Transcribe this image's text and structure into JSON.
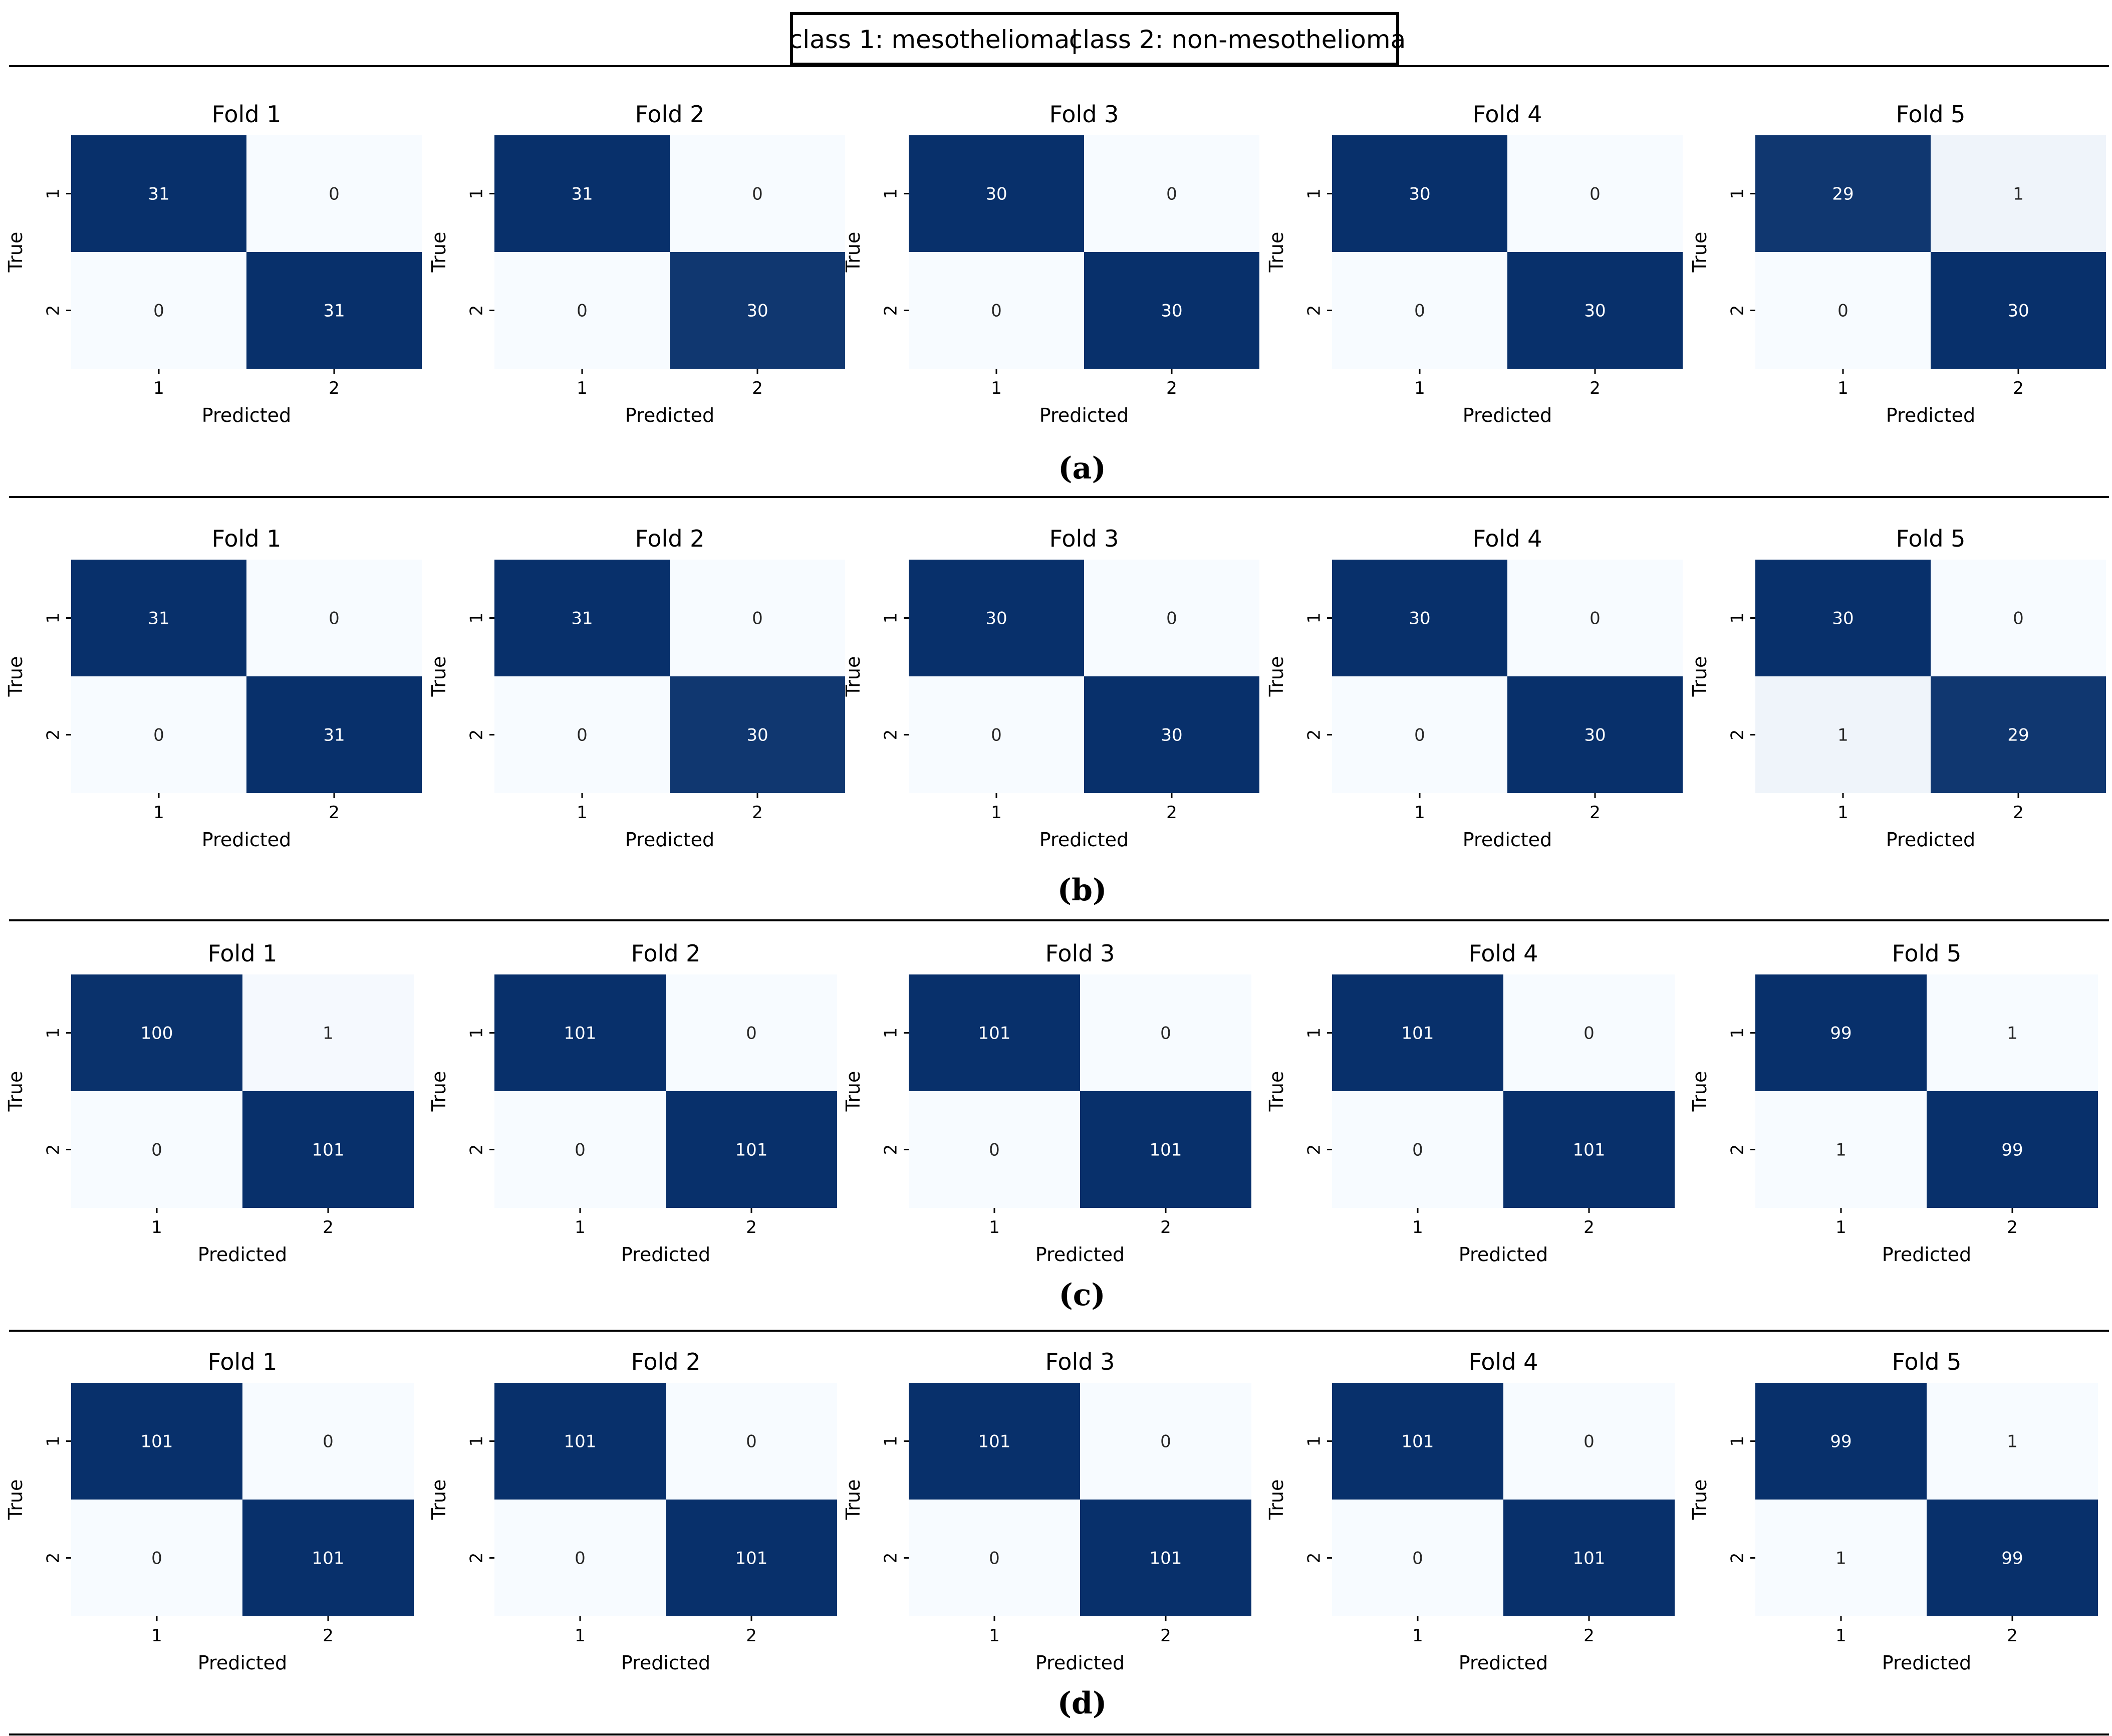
{
  "legend": {
    "class1": "class 1: mesothelioma",
    "separator": "|",
    "class2": "class 2: non-mesothelioma"
  },
  "colors": {
    "low": "#f7fbff",
    "high": "#08306b",
    "text_dark_bg": "#ffffff",
    "text_light_bg": "#262626"
  },
  "chart_data": [
    {
      "panel": "(a)",
      "type": "heatmap",
      "matrices": [
        {
          "title": "Fold 1",
          "xlabel": "Predicted",
          "ylabel": "True",
          "x_ticks": [
            "1",
            "2"
          ],
          "y_ticks": [
            "1",
            "2"
          ],
          "values": [
            [
              31,
              0
            ],
            [
              0,
              31
            ]
          ]
        },
        {
          "title": "Fold 2",
          "xlabel": "Predicted",
          "ylabel": "True",
          "x_ticks": [
            "1",
            "2"
          ],
          "y_ticks": [
            "1",
            "2"
          ],
          "values": [
            [
              31,
              0
            ],
            [
              0,
              30
            ]
          ]
        },
        {
          "title": "Fold 3",
          "xlabel": "Predicted",
          "ylabel": "True",
          "x_ticks": [
            "1",
            "2"
          ],
          "y_ticks": [
            "1",
            "2"
          ],
          "values": [
            [
              30,
              0
            ],
            [
              0,
              30
            ]
          ]
        },
        {
          "title": "Fold 4",
          "xlabel": "Predicted",
          "ylabel": "True",
          "x_ticks": [
            "1",
            "2"
          ],
          "y_ticks": [
            "1",
            "2"
          ],
          "values": [
            [
              30,
              0
            ],
            [
              0,
              30
            ]
          ]
        },
        {
          "title": "Fold 5",
          "xlabel": "Predicted",
          "ylabel": "True",
          "x_ticks": [
            "1",
            "2"
          ],
          "y_ticks": [
            "1",
            "2"
          ],
          "values": [
            [
              29,
              1
            ],
            [
              0,
              30
            ]
          ]
        }
      ]
    },
    {
      "panel": "(b)",
      "type": "heatmap",
      "matrices": [
        {
          "title": "Fold 1",
          "xlabel": "Predicted",
          "ylabel": "True",
          "x_ticks": [
            "1",
            "2"
          ],
          "y_ticks": [
            "1",
            "2"
          ],
          "values": [
            [
              31,
              0
            ],
            [
              0,
              31
            ]
          ]
        },
        {
          "title": "Fold 2",
          "xlabel": "Predicted",
          "ylabel": "True",
          "x_ticks": [
            "1",
            "2"
          ],
          "y_ticks": [
            "1",
            "2"
          ],
          "values": [
            [
              31,
              0
            ],
            [
              0,
              30
            ]
          ]
        },
        {
          "title": "Fold 3",
          "xlabel": "Predicted",
          "ylabel": "True",
          "x_ticks": [
            "1",
            "2"
          ],
          "y_ticks": [
            "1",
            "2"
          ],
          "values": [
            [
              30,
              0
            ],
            [
              0,
              30
            ]
          ]
        },
        {
          "title": "Fold 4",
          "xlabel": "Predicted",
          "ylabel": "True",
          "x_ticks": [
            "1",
            "2"
          ],
          "y_ticks": [
            "1",
            "2"
          ],
          "values": [
            [
              30,
              0
            ],
            [
              0,
              30
            ]
          ]
        },
        {
          "title": "Fold 5",
          "xlabel": "Predicted",
          "ylabel": "True",
          "x_ticks": [
            "1",
            "2"
          ],
          "y_ticks": [
            "1",
            "2"
          ],
          "values": [
            [
              30,
              0
            ],
            [
              1,
              29
            ]
          ]
        }
      ]
    },
    {
      "panel": "(c)",
      "type": "heatmap",
      "matrices": [
        {
          "title": "Fold 1",
          "xlabel": "Predicted",
          "ylabel": "True",
          "x_ticks": [
            "1",
            "2"
          ],
          "y_ticks": [
            "1",
            "2"
          ],
          "values": [
            [
              100,
              1
            ],
            [
              0,
              101
            ]
          ]
        },
        {
          "title": "Fold 2",
          "xlabel": "Predicted",
          "ylabel": "True",
          "x_ticks": [
            "1",
            "2"
          ],
          "y_ticks": [
            "1",
            "2"
          ],
          "values": [
            [
              101,
              0
            ],
            [
              0,
              101
            ]
          ]
        },
        {
          "title": "Fold 3",
          "xlabel": "Predicted",
          "ylabel": "True",
          "x_ticks": [
            "1",
            "2"
          ],
          "y_ticks": [
            "1",
            "2"
          ],
          "values": [
            [
              101,
              0
            ],
            [
              0,
              101
            ]
          ]
        },
        {
          "title": "Fold 4",
          "xlabel": "Predicted",
          "ylabel": "True",
          "x_ticks": [
            "1",
            "2"
          ],
          "y_ticks": [
            "1",
            "2"
          ],
          "values": [
            [
              101,
              0
            ],
            [
              0,
              101
            ]
          ]
        },
        {
          "title": "Fold 5",
          "xlabel": "Predicted",
          "ylabel": "True",
          "x_ticks": [
            "1",
            "2"
          ],
          "y_ticks": [
            "1",
            "2"
          ],
          "values": [
            [
              99,
              1
            ],
            [
              1,
              99
            ]
          ]
        }
      ]
    },
    {
      "panel": "(d)",
      "type": "heatmap",
      "matrices": [
        {
          "title": "Fold 1",
          "xlabel": "Predicted",
          "ylabel": "True",
          "x_ticks": [
            "1",
            "2"
          ],
          "y_ticks": [
            "1",
            "2"
          ],
          "values": [
            [
              101,
              0
            ],
            [
              0,
              101
            ]
          ]
        },
        {
          "title": "Fold 2",
          "xlabel": "Predicted",
          "ylabel": "True",
          "x_ticks": [
            "1",
            "2"
          ],
          "y_ticks": [
            "1",
            "2"
          ],
          "values": [
            [
              101,
              0
            ],
            [
              0,
              101
            ]
          ]
        },
        {
          "title": "Fold 3",
          "xlabel": "Predicted",
          "ylabel": "True",
          "x_ticks": [
            "1",
            "2"
          ],
          "y_ticks": [
            "1",
            "2"
          ],
          "values": [
            [
              101,
              0
            ],
            [
              0,
              101
            ]
          ]
        },
        {
          "title": "Fold 4",
          "xlabel": "Predicted",
          "ylabel": "True",
          "x_ticks": [
            "1",
            "2"
          ],
          "y_ticks": [
            "1",
            "2"
          ],
          "values": [
            [
              101,
              0
            ],
            [
              0,
              101
            ]
          ]
        },
        {
          "title": "Fold 5",
          "xlabel": "Predicted",
          "ylabel": "True",
          "x_ticks": [
            "1",
            "2"
          ],
          "y_ticks": [
            "1",
            "2"
          ],
          "values": [
            [
              99,
              1
            ],
            [
              1,
              99
            ]
          ]
        }
      ]
    }
  ]
}
